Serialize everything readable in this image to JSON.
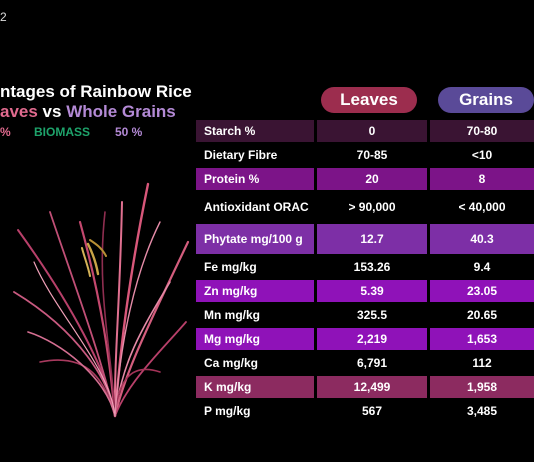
{
  "corner_text": "2",
  "title": {
    "line1": "ntages of Rainbow Rice",
    "line2_leaves": "aves",
    "line2_vs": " vs ",
    "line2_grains": "Whole Grains"
  },
  "stats": {
    "a": "%",
    "b": "BIOMASS",
    "c": "50 %"
  },
  "headers": {
    "leaves": "Leaves",
    "grains": "Grains"
  },
  "rows": [
    {
      "label": "Starch %",
      "leaves": "0",
      "grains": "70-80"
    },
    {
      "label": "Dietary Fibre",
      "leaves": "70-85",
      "grains": "<10"
    },
    {
      "label": "Protein %",
      "leaves": "20",
      "grains": "8"
    },
    {
      "label": "Antioxidant ORAC",
      "leaves": "> 90,000",
      "grains": "< 40,000"
    },
    {
      "label": "Phytate mg/100 g",
      "leaves": "12.7",
      "grains": "40.3"
    },
    {
      "label": "Fe mg/kg",
      "leaves": "153.26",
      "grains": "9.4"
    },
    {
      "label": "Zn mg/kg",
      "leaves": "5.39",
      "grains": "23.05"
    },
    {
      "label": "Mn mg/kg",
      "leaves": "325.5",
      "grains": "20.65"
    },
    {
      "label": "Mg mg/kg",
      "leaves": "2,219",
      "grains": "1,653"
    },
    {
      "label": "Ca mg/kg",
      "leaves": "6,791",
      "grains": "112"
    },
    {
      "label": "K mg/kg",
      "leaves": "12,499",
      "grains": "1,958"
    },
    {
      "label": "P mg/kg",
      "leaves": "567",
      "grains": "3,485"
    }
  ],
  "colors": {
    "leaves_accent": "#e06a8e",
    "grains_accent": "#b48ad6",
    "biomass_accent": "#1ea36b"
  }
}
